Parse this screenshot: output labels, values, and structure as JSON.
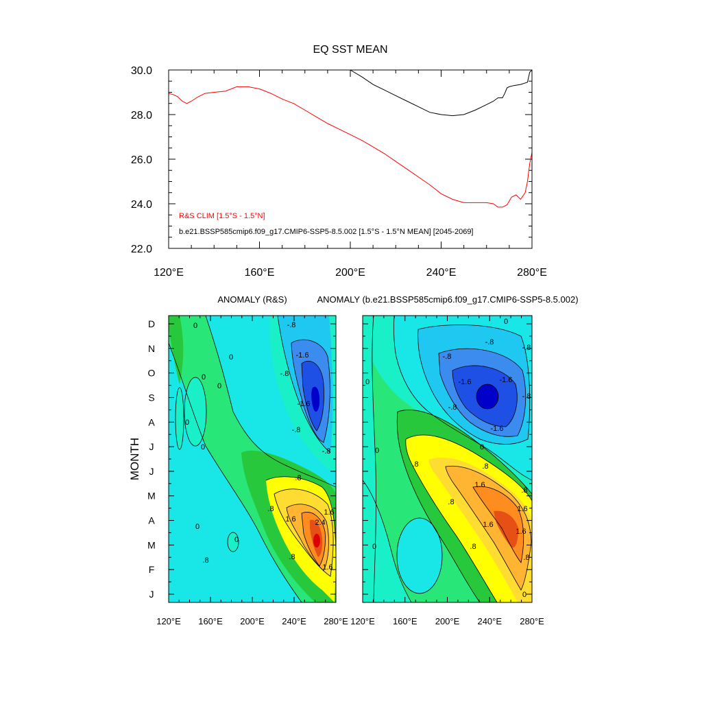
{
  "colors": {
    "clim_line": "#ff0000",
    "model_line": "#000000",
    "levels": [
      "#0000c8",
      "#1e50e6",
      "#3c8cf0",
      "#1ec8f0",
      "#19e6e6",
      "#19f0c8",
      "#28e678",
      "#3ce65a",
      "#28c83c",
      "#ffff00",
      "#ffdc32",
      "#ffb432",
      "#ff8c1e",
      "#e65014",
      "#dc0000"
    ]
  },
  "chart_data": [
    {
      "type": "line",
      "title": "EQ SST MEAN",
      "xlabel": "",
      "ylabel": "",
      "xlim": [
        120,
        280
      ],
      "ylim": [
        22,
        30
      ],
      "x_ticks": [
        {
          "v": 120,
          "label": "120°E"
        },
        {
          "v": 160,
          "label": "160°E"
        },
        {
          "v": 200,
          "label": "200°E"
        },
        {
          "v": 240,
          "label": "240°E"
        },
        {
          "v": 280,
          "label": "280°E"
        }
      ],
      "y_ticks": [
        {
          "v": 22,
          "label": "22.0"
        },
        {
          "v": 24,
          "label": "24.0"
        },
        {
          "v": 26,
          "label": "26.0"
        },
        {
          "v": 28,
          "label": "28.0"
        },
        {
          "v": 30,
          "label": "30.0"
        }
      ],
      "legend": [
        "R&S CLIM [1.5°S - 1.5°N]",
        "b.e21.BSSP585cmip6.f09_g17.CMIP6-SSP5-8.5.002 [1.5°S - 1.5°N MEAN] [2045-2069]"
      ],
      "series": [
        {
          "name": "R&S CLIM [1.5°S - 1.5°N]",
          "x": [
            120,
            122,
            124,
            126,
            128,
            130,
            133,
            136,
            140,
            145,
            150,
            155,
            160,
            165,
            170,
            175,
            180,
            185,
            190,
            195,
            200,
            205,
            210,
            215,
            220,
            225,
            230,
            235,
            240,
            245,
            250,
            255,
            260,
            263,
            265,
            267,
            269,
            271,
            273,
            275,
            277,
            278,
            279,
            280
          ],
          "y": [
            28.95,
            28.9,
            28.8,
            28.6,
            28.5,
            28.6,
            28.8,
            28.95,
            29.0,
            29.05,
            29.25,
            29.25,
            29.15,
            28.95,
            28.7,
            28.5,
            28.2,
            27.9,
            27.6,
            27.35,
            27.1,
            26.85,
            26.55,
            26.25,
            25.9,
            25.55,
            25.2,
            24.85,
            24.45,
            24.2,
            24.05,
            24.05,
            24.05,
            24.0,
            23.85,
            23.85,
            23.95,
            24.3,
            24.4,
            24.2,
            24.5,
            25.0,
            25.8,
            26.3
          ]
        },
        {
          "name": "b.e21.BSSP585cmip6.f09_g17.CMIP6-SSP5-8.5.002 [1.5°S - 1.5°N MEAN] [2045-2069]",
          "x": [
            200,
            205,
            210,
            215,
            220,
            225,
            230,
            235,
            240,
            245,
            250,
            255,
            260,
            263,
            265,
            267,
            268,
            269,
            270,
            272,
            275,
            278,
            279,
            280
          ],
          "y": [
            30.0,
            29.7,
            29.35,
            29.1,
            28.85,
            28.6,
            28.35,
            28.1,
            28.0,
            27.95,
            28.0,
            28.2,
            28.45,
            28.6,
            28.75,
            28.75,
            28.95,
            29.2,
            29.25,
            29.3,
            29.35,
            29.45,
            29.9,
            30.0
          ]
        }
      ]
    },
    {
      "type": "heatmap",
      "title": "ANOMALY (R&S)",
      "xlabel": "",
      "ylabel": "MONTH",
      "xlim": [
        120,
        280
      ],
      "x_ticks": [
        "120°E",
        "160°E",
        "200°E",
        "240°E",
        "280°E"
      ],
      "months": [
        "J",
        "F",
        "M",
        "A",
        "M",
        "J",
        "J",
        "A",
        "S",
        "O",
        "N",
        "D"
      ],
      "contour_labels": [
        "0",
        "0",
        "0",
        "0",
        "0",
        "0",
        "0",
        "0",
        "-.8",
        "-.8",
        "-1.6",
        "-1.6",
        "-.8",
        "-.8",
        ".8",
        ".8",
        "1.6",
        "2.4",
        "1.6",
        ".8",
        "1.6",
        ".8"
      ]
    },
    {
      "type": "heatmap",
      "title": "ANOMALY (b.e21.BSSP585cmip6.f09_g17.CMIP6-SSP5-8.5.002)",
      "xlabel": "",
      "ylabel": "",
      "xlim": [
        120,
        280
      ],
      "x_ticks": [
        "120°E",
        "160°E",
        "200°E",
        "240°E",
        "280°E"
      ],
      "months": [
        "J",
        "F",
        "M",
        "A",
        "M",
        "J",
        "J",
        "A",
        "S",
        "O",
        "N",
        "D"
      ],
      "contour_labels": [
        "0",
        "-.8",
        "-.8",
        "-1.6",
        "-1.6",
        "-.8",
        "-1.6",
        "-.8",
        "0",
        "-.8",
        ".8",
        ".8",
        ".8",
        "1.6",
        "1.6",
        ".8",
        "1.6",
        ".8",
        ".8",
        "1.6",
        "0",
        "0",
        "0",
        "0"
      ]
    }
  ]
}
